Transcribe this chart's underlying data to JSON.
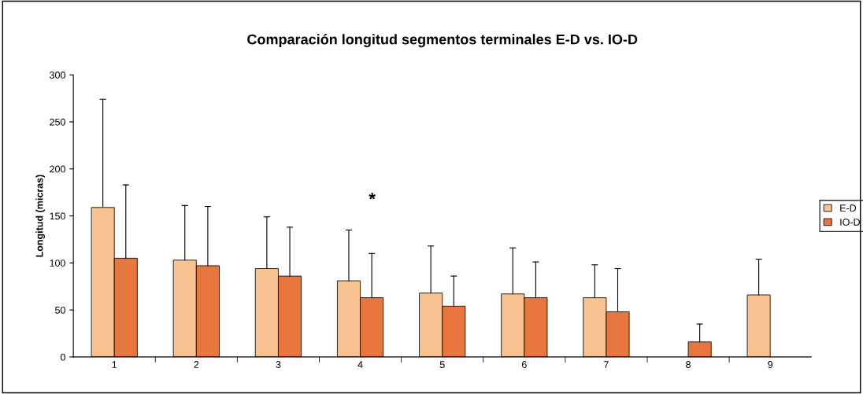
{
  "chart_data": {
    "type": "bar",
    "title": "Comparación longitud segmentos terminales E-D vs. IO-D",
    "ylabel": "Longitud (micras)",
    "categories": [
      "1",
      "2",
      "3",
      "4",
      "5",
      "6",
      "7",
      "8",
      "9"
    ],
    "series": [
      {
        "name": "E-D",
        "color": "#f7c290",
        "values": [
          159,
          103,
          94,
          81,
          68,
          67,
          63,
          null,
          66
        ],
        "errors": [
          [
            159,
            274
          ],
          [
            103,
            161
          ],
          [
            94,
            149
          ],
          [
            81,
            135
          ],
          [
            68,
            118
          ],
          [
            67,
            116
          ],
          [
            63,
            98
          ],
          null,
          [
            66,
            104
          ]
        ]
      },
      {
        "name": "IO-D",
        "color": "#e8763f",
        "values": [
          105,
          97,
          86,
          63,
          54,
          63,
          48,
          16,
          null
        ],
        "errors": [
          [
            105,
            183
          ],
          [
            97,
            160
          ],
          [
            86,
            138
          ],
          [
            63,
            110
          ],
          [
            54,
            86
          ],
          [
            63,
            101
          ],
          [
            48,
            94
          ],
          [
            16,
            35
          ],
          null
        ]
      }
    ],
    "ylim": [
      0,
      300
    ],
    "yticks": [
      0,
      50,
      100,
      150,
      200,
      250,
      300
    ],
    "grid": false,
    "legend": "right",
    "annotations": [
      "*"
    ]
  }
}
